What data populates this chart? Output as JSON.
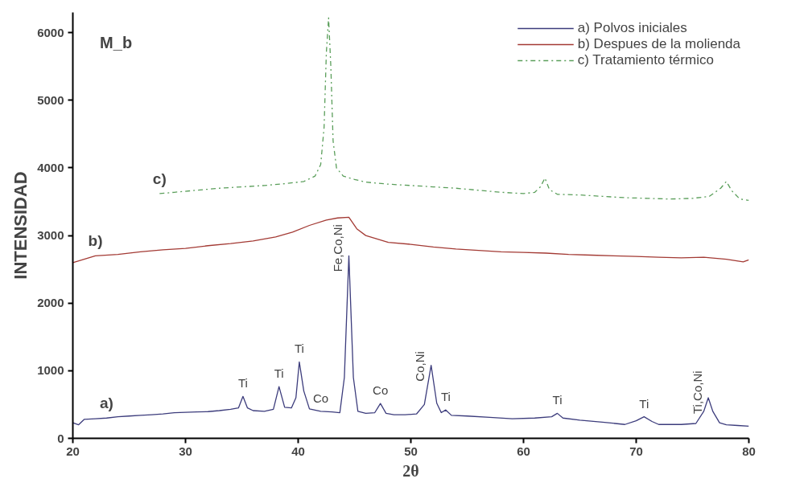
{
  "chart_data": {
    "type": "line",
    "xlabel": "2θ",
    "ylabel": "INTENSIDAD",
    "xlim": [
      20,
      80
    ],
    "ylim": [
      0,
      6300
    ],
    "xticks": [
      20,
      30,
      40,
      50,
      60,
      70,
      80
    ],
    "yticks": [
      0,
      1000,
      2000,
      3000,
      4000,
      5000,
      6000
    ],
    "grid": false,
    "legend": "top right",
    "marker": "none",
    "series": [
      {
        "name": "a) Polvos iniciales",
        "color": "#3c3c7c",
        "line_style": "solid",
        "x": [
          20,
          20.5,
          21,
          22,
          23,
          24,
          25,
          26,
          27,
          28,
          29,
          30,
          31,
          32,
          33,
          34,
          34.7,
          35.1,
          35.5,
          36,
          37,
          37.8,
          38.3,
          38.8,
          39.4,
          39.8,
          40.1,
          40.5,
          41,
          42,
          43,
          43.7,
          44.1,
          44.5,
          44.9,
          45.3,
          46,
          46.8,
          47.3,
          47.8,
          48.5,
          49.5,
          50.5,
          51.2,
          51.8,
          52.3,
          52.7,
          53.1,
          53.6,
          55,
          57,
          59,
          61,
          62.5,
          63,
          63.5,
          65,
          67,
          69,
          70,
          70.7,
          71.4,
          72,
          74,
          75.3,
          76,
          76.4,
          76.8,
          77.4,
          78,
          79,
          80
        ],
        "values": [
          230,
          200,
          280,
          290,
          300,
          320,
          330,
          340,
          350,
          360,
          380,
          385,
          390,
          395,
          410,
          430,
          450,
          620,
          450,
          410,
          400,
          430,
          765,
          460,
          450,
          600,
          1130,
          700,
          435,
          400,
          390,
          380,
          900,
          2700,
          900,
          400,
          370,
          380,
          515,
          370,
          350,
          350,
          360,
          500,
          1080,
          520,
          380,
          420,
          340,
          330,
          310,
          290,
          300,
          320,
          370,
          300,
          270,
          240,
          205,
          260,
          320,
          250,
          205,
          205,
          220,
          400,
          600,
          400,
          230,
          200,
          190,
          180
        ]
      },
      {
        "name": "b) Despues de la molienda",
        "color": "#a33a34",
        "line_style": "solid",
        "x": [
          20,
          21,
          22,
          24,
          26,
          28,
          30,
          32,
          34,
          36,
          38,
          39.5,
          41,
          42.5,
          43.5,
          44.5,
          45.2,
          46,
          47,
          48,
          50,
          52,
          54,
          56,
          58,
          60,
          62,
          64,
          66,
          68,
          70,
          72,
          74,
          76,
          78,
          79.5,
          80
        ],
        "values": [
          2600,
          2650,
          2700,
          2720,
          2760,
          2790,
          2810,
          2850,
          2880,
          2920,
          2980,
          3050,
          3150,
          3230,
          3260,
          3270,
          3100,
          3000,
          2950,
          2900,
          2870,
          2830,
          2800,
          2780,
          2760,
          2750,
          2740,
          2720,
          2710,
          2700,
          2690,
          2680,
          2670,
          2680,
          2650,
          2610,
          2640
        ]
      },
      {
        "name": "c) Tratamiento térmico",
        "color": "#5a9e5a",
        "line_style": "dashdot",
        "x": [
          27.7,
          29,
          31,
          33,
          35,
          37,
          39,
          40.5,
          41.5,
          42,
          42.3,
          42.5,
          42.7,
          42.9,
          43.1,
          43.4,
          44,
          45,
          46,
          48,
          50,
          52,
          54,
          56,
          58,
          60,
          61,
          61.5,
          61.9,
          62.3,
          63,
          65,
          67,
          69,
          71,
          73,
          75,
          76.5,
          77.5,
          78,
          78.5,
          79.2,
          80
        ],
        "values": [
          3620,
          3640,
          3670,
          3700,
          3720,
          3740,
          3770,
          3800,
          3880,
          4050,
          4600,
          5700,
          6220,
          5500,
          4400,
          4000,
          3880,
          3830,
          3790,
          3760,
          3740,
          3720,
          3700,
          3670,
          3640,
          3620,
          3640,
          3720,
          3850,
          3680,
          3610,
          3600,
          3580,
          3560,
          3550,
          3540,
          3550,
          3580,
          3700,
          3800,
          3660,
          3540,
          3520
        ]
      }
    ],
    "annotations": [
      "M_b",
      {
        "text": "a)",
        "x": 23,
        "y": 300
      },
      {
        "text": "b)",
        "x": 22,
        "y": 2700
      },
      {
        "text": "c)",
        "x": 27.7,
        "y": 3620
      },
      {
        "text": "Ti",
        "x": 35.1,
        "y": 620
      },
      {
        "text": "Ti",
        "x": 38.3,
        "y": 765
      },
      {
        "text": "Ti",
        "x": 40.1,
        "y": 1130
      },
      {
        "text": "Co",
        "x": 42,
        "y": 400
      },
      {
        "text": "Fe,Co,Ni",
        "x": 44.5,
        "y": 2700
      },
      {
        "text": "Co",
        "x": 47.3,
        "y": 515
      },
      {
        "text": "Co,Ni",
        "x": 51.8,
        "y": 1080
      },
      {
        "text": "Ti",
        "x": 53.1,
        "y": 420
      },
      {
        "text": "Ti",
        "x": 63,
        "y": 370
      },
      {
        "text": "Ti",
        "x": 70.7,
        "y": 320
      },
      {
        "text": "Ti,Co,Ni",
        "x": 76.4,
        "y": 600
      }
    ]
  }
}
